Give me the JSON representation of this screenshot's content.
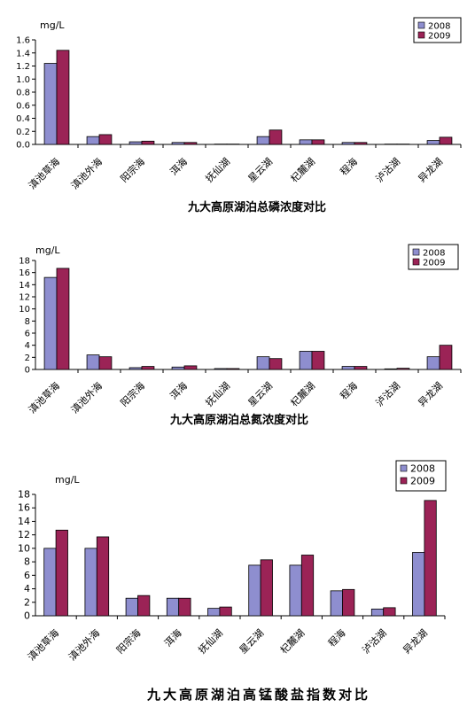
{
  "colors": {
    "s2008": "#8E8ECF",
    "s2009": "#9B2356"
  },
  "chart_data": [
    {
      "type": "bar",
      "title": "九大高原湖泊总磷浓度对比",
      "ylabel": "mg/L",
      "ylim": [
        0,
        1.6
      ],
      "yticks": [
        "0.0",
        "0.2",
        "0.4",
        "0.6",
        "0.8",
        "1.0",
        "1.2",
        "1.4",
        "1.6"
      ],
      "categories": [
        "滇池草海",
        "滇池外海",
        "阳宗海",
        "洱海",
        "抚仙湖",
        "星云湖",
        "杞麓湖",
        "程海",
        "泸沽湖",
        "异龙湖"
      ],
      "series": [
        {
          "name": "2008",
          "values": [
            1.24,
            0.12,
            0.04,
            0.03,
            0.005,
            0.12,
            0.07,
            0.03,
            0.005,
            0.06
          ]
        },
        {
          "name": "2009",
          "values": [
            1.44,
            0.15,
            0.05,
            0.03,
            0.005,
            0.22,
            0.07,
            0.03,
            0.005,
            0.11
          ]
        }
      ],
      "legend": "top-right",
      "grid": false
    },
    {
      "type": "bar",
      "title": "九大高原湖泊总氮浓度对比",
      "ylabel": "mg/L",
      "ylim": [
        0,
        18
      ],
      "yticks": [
        "0",
        "2",
        "4",
        "6",
        "8",
        "10",
        "12",
        "14",
        "16",
        "18"
      ],
      "categories": [
        "滇池草海",
        "滇池外海",
        "阳宗海",
        "洱海",
        "抚仙湖",
        "星云湖",
        "杞麓湖",
        "程海",
        "泸沽湖",
        "异龙湖"
      ],
      "series": [
        {
          "name": "2008",
          "values": [
            15.2,
            2.4,
            0.3,
            0.4,
            0.15,
            2.1,
            3.0,
            0.5,
            0.1,
            2.1
          ]
        },
        {
          "name": "2009",
          "values": [
            16.7,
            2.1,
            0.5,
            0.6,
            0.15,
            1.8,
            3.0,
            0.5,
            0.2,
            4.0
          ]
        }
      ],
      "legend": "top-right",
      "grid": false
    },
    {
      "type": "bar",
      "title": "九大高原湖泊高锰酸盐指数对比",
      "ylabel": "mg/L",
      "ylim": [
        0,
        18
      ],
      "yticks": [
        "0",
        "2",
        "4",
        "6",
        "8",
        "10",
        "12",
        "14",
        "16",
        "18"
      ],
      "categories": [
        "滇池草海",
        "滇池外海",
        "阳宗海",
        "洱海",
        "抚仙湖",
        "星云湖",
        "杞麓湖",
        "程海",
        "泸沽湖",
        "异龙湖"
      ],
      "series": [
        {
          "name": "2008",
          "values": [
            10.0,
            10.0,
            2.6,
            2.6,
            1.1,
            7.5,
            7.5,
            3.7,
            1.0,
            9.4
          ]
        },
        {
          "name": "2009",
          "values": [
            12.7,
            11.7,
            3.0,
            2.6,
            1.3,
            8.3,
            9.0,
            3.9,
            1.2,
            17.1
          ]
        }
      ],
      "legend": "top-right",
      "grid": false
    }
  ]
}
